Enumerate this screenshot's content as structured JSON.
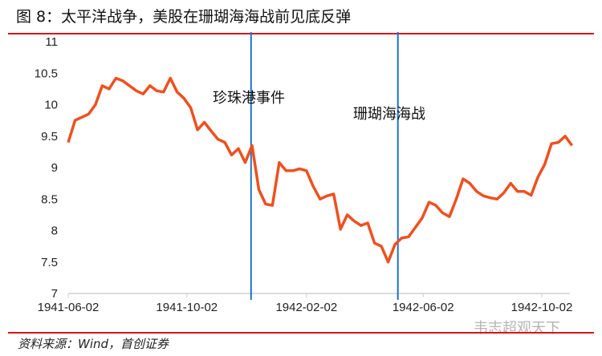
{
  "title": "图 8：太平洋战争，美股在珊瑚海海战前见底反弹",
  "source": "资料来源：Wind，首创证券",
  "watermark": "韦志超观天下",
  "colors": {
    "line": "#ee5020",
    "event_line": "#1a73c8",
    "rule": "#d9151b"
  },
  "chart_data": {
    "type": "line",
    "title": "",
    "xlabel": "",
    "ylabel": "",
    "ylim": [
      7,
      11
    ],
    "yticks": [
      "7",
      "7.5",
      "8",
      "8.5",
      "9",
      "9.5",
      "10",
      "10.5",
      "11"
    ],
    "xticks": [
      "1941-06-02",
      "1941-10-02",
      "1942-02-02",
      "1942-06-02",
      "1942-10-02"
    ],
    "grid": false,
    "events": [
      {
        "date": "1941-12-07",
        "label": "珍珠港事件"
      },
      {
        "date": "1942-05-07",
        "label": "珊瑚海海战"
      }
    ],
    "series": [
      {
        "x": [
          "1941-06-02",
          "1941-06-09",
          "1941-06-16",
          "1941-06-23",
          "1941-06-30",
          "1941-07-07",
          "1941-07-14",
          "1941-07-21",
          "1941-07-28",
          "1941-08-04",
          "1941-08-11",
          "1941-08-18",
          "1941-08-25",
          "1941-09-01",
          "1941-09-08",
          "1941-09-15",
          "1941-09-22",
          "1941-09-29",
          "1941-10-06",
          "1941-10-13",
          "1941-10-20",
          "1941-10-27",
          "1941-11-03",
          "1941-11-10",
          "1941-11-17",
          "1941-11-24",
          "1941-12-01",
          "1941-12-08",
          "1941-12-15",
          "1941-12-22",
          "1941-12-29",
          "1942-01-05",
          "1942-01-12",
          "1942-01-19",
          "1942-01-26",
          "1942-02-02",
          "1942-02-09",
          "1942-02-16",
          "1942-02-23",
          "1942-03-02",
          "1942-03-09",
          "1942-03-16",
          "1942-03-23",
          "1942-03-30",
          "1942-04-06",
          "1942-04-13",
          "1942-04-20",
          "1942-04-27",
          "1942-05-04",
          "1942-05-11",
          "1942-05-18",
          "1942-05-25",
          "1942-06-01",
          "1942-06-08",
          "1942-06-15",
          "1942-06-22",
          "1942-06-29",
          "1942-07-06",
          "1942-07-13",
          "1942-07-20",
          "1942-07-27",
          "1942-08-03",
          "1942-08-10",
          "1942-08-17",
          "1942-08-24",
          "1942-08-31",
          "1942-09-07",
          "1942-09-14",
          "1942-09-21",
          "1942-09-28",
          "1942-10-05",
          "1942-10-12",
          "1942-10-19",
          "1942-10-26",
          "1942-11-02"
        ],
        "values": [
          9.4,
          9.75,
          9.8,
          9.85,
          10.0,
          10.3,
          10.25,
          10.42,
          10.38,
          10.3,
          10.22,
          10.17,
          10.3,
          10.22,
          10.2,
          10.42,
          10.2,
          10.1,
          9.95,
          9.6,
          9.72,
          9.58,
          9.45,
          9.4,
          9.2,
          9.3,
          9.08,
          9.35,
          8.65,
          8.42,
          8.4,
          9.08,
          8.95,
          8.95,
          8.98,
          8.95,
          8.7,
          8.5,
          8.55,
          8.58,
          8.02,
          8.25,
          8.15,
          8.08,
          8.12,
          7.8,
          7.75,
          7.5,
          7.78,
          7.88,
          7.9,
          8.05,
          8.2,
          8.45,
          8.4,
          8.28,
          8.22,
          8.5,
          8.82,
          8.75,
          8.62,
          8.55,
          8.52,
          8.5,
          8.6,
          8.75,
          8.62,
          8.62,
          8.56,
          8.85,
          9.05,
          9.38,
          9.4,
          9.5,
          9.35
        ]
      }
    ]
  }
}
